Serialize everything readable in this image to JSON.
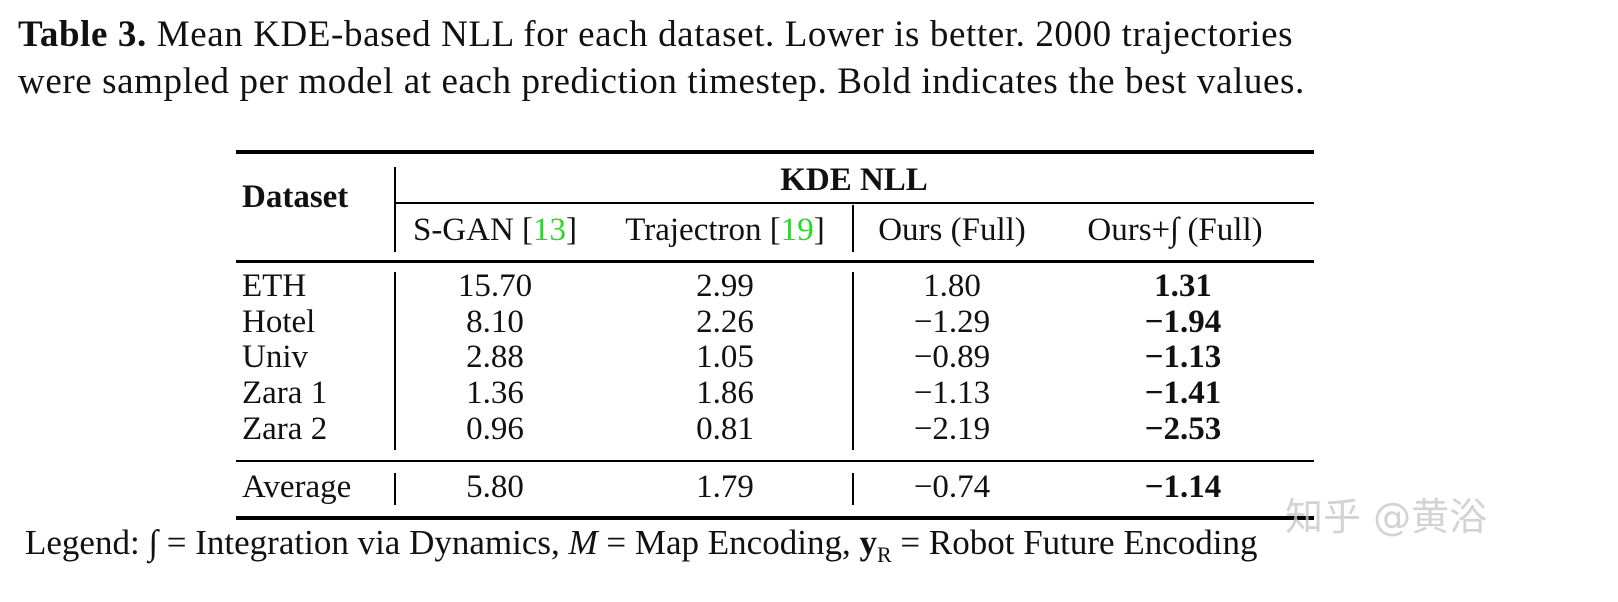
{
  "caption": {
    "label": "Table 3.",
    "text": " Mean KDE-based NLL for each dataset. Lower is better. 2000 trajectories",
    "text2": "were sampled per model at each prediction timestep. Bold indicates the best values."
  },
  "table": {
    "row_header": "Dataset",
    "group_header": "KDE NLL",
    "columns": [
      {
        "pre": "S-GAN [",
        "cite": "13",
        "post": "]"
      },
      {
        "pre": "Trajectron [",
        "cite": "19",
        "post": "]"
      },
      {
        "pre": "Ours (Full)"
      },
      {
        "pre": "Ours+∫ (Full)"
      }
    ],
    "rows": [
      [
        "ETH",
        "15.70",
        "2.99",
        "1.80",
        "1.31"
      ],
      [
        "Hotel",
        "8.10",
        "2.26",
        "−1.29",
        "−1.94"
      ],
      [
        "Univ",
        "2.88",
        "1.05",
        "−0.89",
        "−1.13"
      ],
      [
        "Zara 1",
        "1.36",
        "1.86",
        "−1.13",
        "−1.41"
      ],
      [
        "Zara 2",
        "0.96",
        "0.81",
        "−2.19",
        "−2.53"
      ]
    ],
    "average": [
      "Average",
      "5.80",
      "1.79",
      "−0.74",
      "−1.14"
    ]
  },
  "legend": {
    "lead": "Legend: ",
    "sym1": "∫",
    "def1": " = Integration via Dynamics, ",
    "sym2": "M",
    "def2": " = Map Encoding, ",
    "sym3": "y",
    "sub3": "R",
    "def3": " = Robot Future Encoding"
  },
  "watermark": "知乎 @黄浴"
}
